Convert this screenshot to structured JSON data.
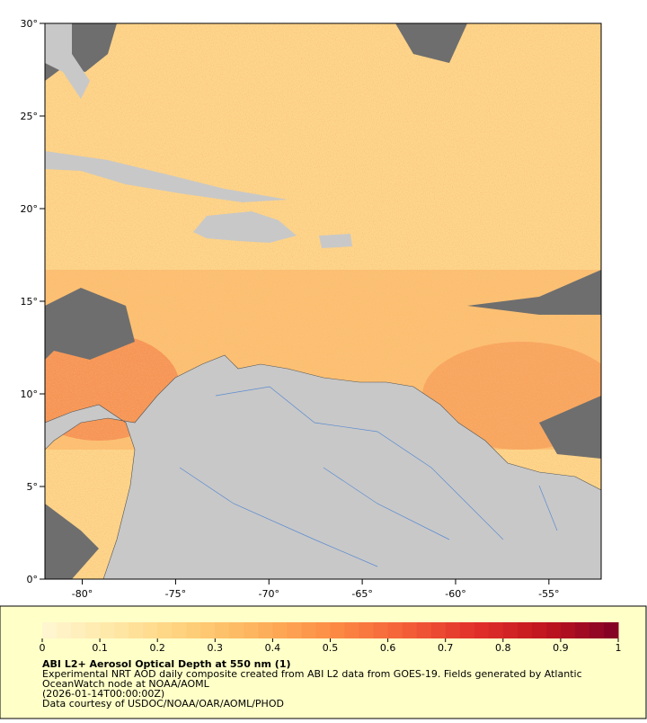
{
  "map": {
    "xlim": [
      -82,
      -52.2
    ],
    "ylim": [
      0,
      30
    ],
    "xticks": [
      {
        "value": -80,
        "label": "-80°"
      },
      {
        "value": -75,
        "label": "-75°"
      },
      {
        "value": -70,
        "label": "-70°"
      },
      {
        "value": -65,
        "label": "-65°"
      },
      {
        "value": -60,
        "label": "-60°"
      },
      {
        "value": -55,
        "label": "-55°"
      }
    ],
    "yticks": [
      {
        "value": 0,
        "label": "0°"
      },
      {
        "value": 5,
        "label": "5°"
      },
      {
        "value": 10,
        "label": "10°"
      },
      {
        "value": 15,
        "label": "15°"
      },
      {
        "value": 20,
        "label": "20°"
      },
      {
        "value": 25,
        "label": "25°"
      },
      {
        "value": 30,
        "label": "30°"
      }
    ]
  },
  "colorbar": {
    "range": [
      0,
      1
    ],
    "ticks": [
      0,
      0.1,
      0.2,
      0.3,
      0.4,
      0.5,
      0.6,
      0.7,
      0.8,
      0.9,
      1
    ],
    "colormap": [
      "#fff6d2",
      "#ffe7a6",
      "#fed07a",
      "#fdb25c",
      "#fc8d45",
      "#f4623a",
      "#e2302a",
      "#c0151f",
      "#800026"
    ]
  },
  "caption": {
    "title": "ABI L2+ Aerosol Optical Depth at 550 nm (1)",
    "lines": [
      "Experimental NRT AOD daily composite created from ABI L2 data from GOES-19. Fields generated by Atlantic",
      "OceanWatch node at NOAA/AOML",
      "(2026-01-14T00:00:00Z)",
      "Data courtesy of USDOC/NOAA/OAR/AOML/PHOD"
    ]
  }
}
